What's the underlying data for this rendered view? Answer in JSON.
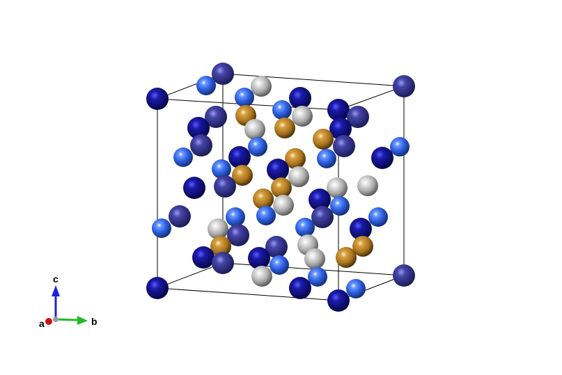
{
  "viewer": {
    "background": "#ffffff",
    "cell_line_color": "#000000"
  },
  "species_colors": {
    "navy": "#10108a",
    "slate": "#3f3f9c",
    "blue": "#2f5fe0",
    "gray": "#b4b4b4",
    "gold": "#b0802a"
  },
  "axes": {
    "a": {
      "label": "a",
      "color": "#cc1010"
    },
    "b": {
      "label": "b",
      "color": "#22bb22"
    },
    "c": {
      "label": "c",
      "color": "#2020dd"
    }
  }
}
